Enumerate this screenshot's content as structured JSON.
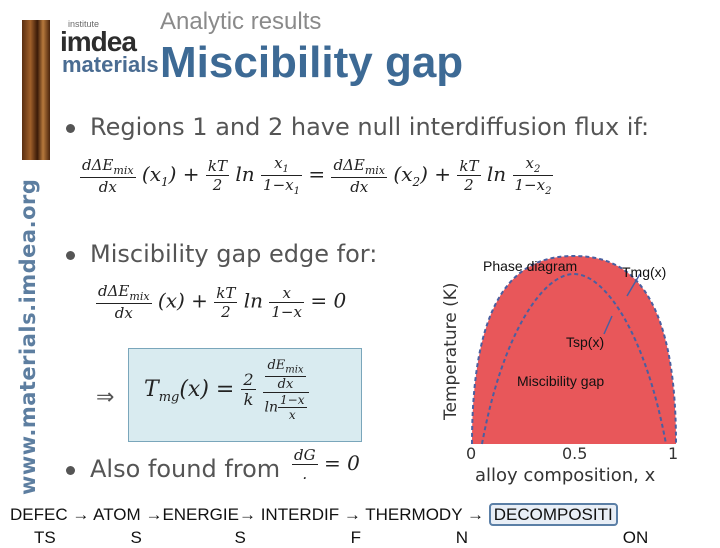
{
  "header": {
    "logo_small": "institute",
    "logo_main": "imdea",
    "logo_sub": "materials",
    "section": "Analytic results",
    "title": "Miscibility gap",
    "side_url": "www.materials.imdea.org"
  },
  "bullets": [
    {
      "text": "Regions 1 and 2 have null interdiffusion flux if:"
    },
    {
      "text": "Miscibility gap edge for:"
    },
    {
      "text": "Also found from"
    }
  ],
  "equations": {
    "eq1": {
      "dE": "dΔE",
      "mix": "mix",
      "dx": "dx",
      "kT": "kT",
      "two": "2",
      "ln": "ln",
      "x1": "x",
      "x2": "x",
      "one_minus": "1−x",
      "sub1": "1",
      "sub2": "2"
    },
    "eq2": {
      "dE": "dΔE",
      "mix": "mix",
      "dx": "dx",
      "kT": "kT",
      "two": "2",
      "ln": "ln",
      "x": "x",
      "one_minus_x": "1−x",
      "zero": "0"
    },
    "eq3": {
      "implies": "⇒",
      "T": "T",
      "mg": "mg",
      "x": "(x) =",
      "two": "2",
      "k": "k",
      "dE": "dE",
      "mix": "mix",
      "dx": "dx",
      "ln": "ln",
      "one_minus_x": "1−x",
      "xden": "x"
    },
    "eq4": {
      "dG": "dG",
      "dot": ".",
      "eq": "= 0"
    }
  },
  "diagram": {
    "phase_label": "Phase diagram",
    "tmg_label": "Tmg(x)",
    "tsp_label": "Tsp(x)",
    "gap_label": "Miscibility gap",
    "ylabel": "Temperature (K)",
    "xlabel": "alloy composition, x",
    "xticks": [
      "0",
      "0.5",
      "1"
    ],
    "fill_color": "#e8575a",
    "curve_color": "#4a5fa0"
  },
  "flow": {
    "items": [
      "DEFEC",
      "ATOM",
      "ENERGIE",
      "INTERDIF",
      "THERMODY",
      "DECOMPOSITI"
    ],
    "arrow": "→",
    "line2": [
      "TS",
      "S",
      "S",
      "F",
      "N",
      "ON"
    ]
  }
}
